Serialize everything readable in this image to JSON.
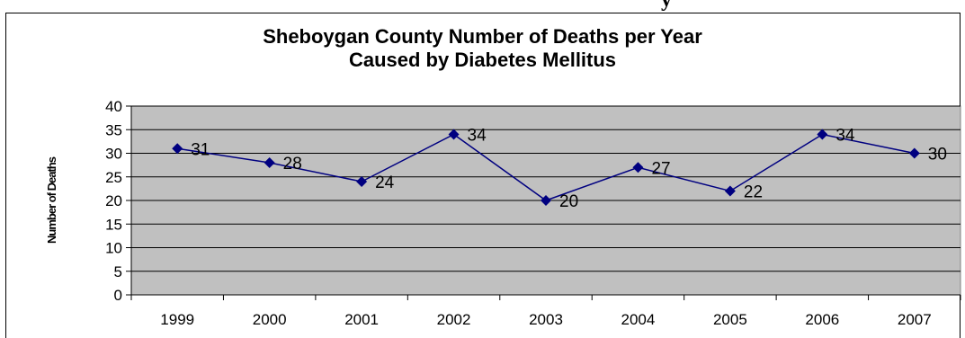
{
  "page_header_fragment": "y",
  "chart_data": {
    "type": "line",
    "title": "Sheboygan County Number of Deaths per Year",
    "subtitle": "Caused by Diabetes Mellitus",
    "ylabel": "Number of Deaths",
    "xlabel": "",
    "categories": [
      "1999",
      "2000",
      "2001",
      "2002",
      "2003",
      "2004",
      "2005",
      "2006",
      "2007"
    ],
    "values": [
      31,
      28,
      24,
      34,
      20,
      27,
      22,
      34,
      30
    ],
    "data_labels": [
      "31",
      "28",
      "24",
      "34",
      "20",
      "27",
      "22",
      "34",
      "30"
    ],
    "ylim": [
      0,
      40
    ],
    "yticks": [
      "0",
      "5",
      "10",
      "15",
      "20",
      "25",
      "30",
      "35",
      "40"
    ],
    "grid": true,
    "legend": "none",
    "colors": {
      "plot_background": "#c0c0c0",
      "line": "#000080",
      "marker": "#000080",
      "grid": "#000000"
    }
  }
}
